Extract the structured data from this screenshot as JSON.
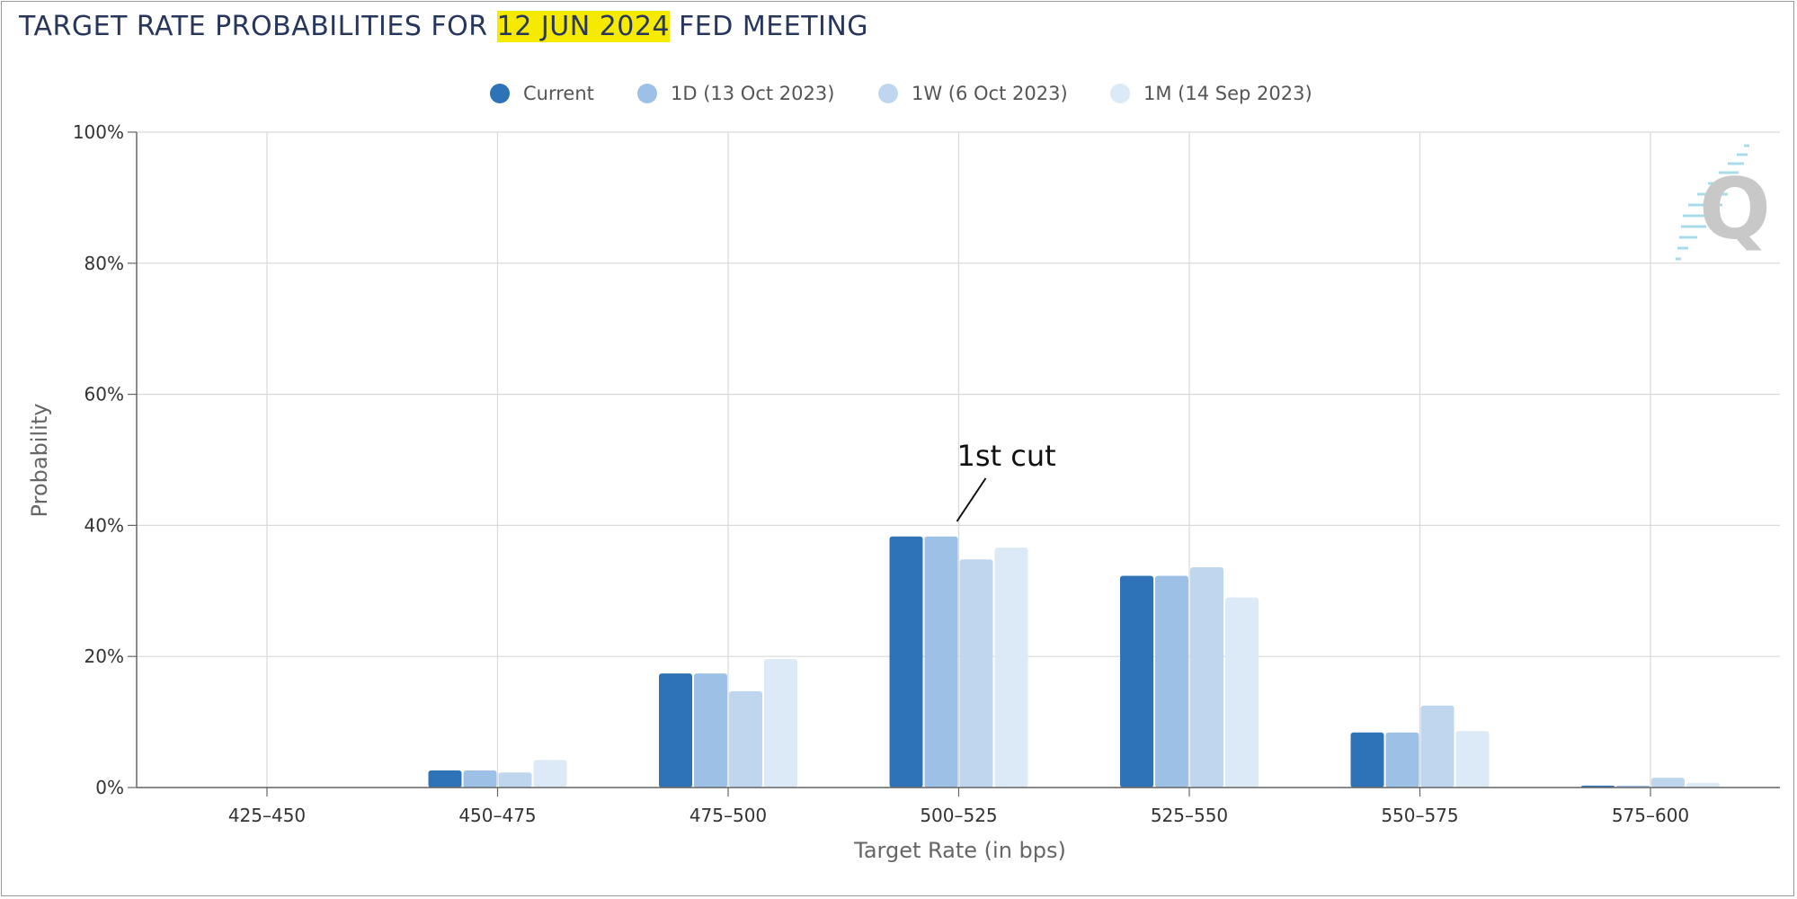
{
  "title": {
    "prefix": "TARGET RATE PROBABILITIES FOR ",
    "highlight": "12 JUN 2024",
    "suffix": " FED MEETING",
    "highlight_color": "#f5ea00"
  },
  "legend": [
    {
      "label": "Current",
      "color": "#2e73b8"
    },
    {
      "label": "1D (13 Oct 2023)",
      "color": "#9dc1e6"
    },
    {
      "label": "1W (6 Oct 2023)",
      "color": "#bfd7ee"
    },
    {
      "label": "1M (14 Sep 2023)",
      "color": "#dce9f6"
    }
  ],
  "chart_data": {
    "type": "bar",
    "categories": [
      "425-450",
      "450-475",
      "475-500",
      "500-525",
      "525-550",
      "550-575",
      "575-600"
    ],
    "series": [
      {
        "name": "Current",
        "color": "#2e73b8",
        "values": [
          0.0,
          2.6,
          17.4,
          38.3,
          32.3,
          8.4,
          0.3
        ]
      },
      {
        "name": "1D (13 Oct 2023)",
        "color": "#9dc1e6",
        "values": [
          0.0,
          2.6,
          17.4,
          38.3,
          32.3,
          8.4,
          0.3
        ]
      },
      {
        "name": "1W (6 Oct 2023)",
        "color": "#bfd7ee",
        "values": [
          0.0,
          2.3,
          14.7,
          34.8,
          33.6,
          12.5,
          1.5
        ]
      },
      {
        "name": "1M (14 Sep 2023)",
        "color": "#dce9f6",
        "values": [
          0.0,
          4.2,
          19.6,
          36.6,
          29.0,
          8.6,
          0.7
        ]
      }
    ],
    "ylim": [
      0,
      100
    ],
    "yticks": [
      "0%",
      "20%",
      "40%",
      "60%",
      "80%",
      "100%"
    ],
    "ytick_values": [
      0,
      20,
      40,
      60,
      80,
      100
    ],
    "xlabel": "Target Rate (in bps)",
    "ylabel": "Probability",
    "grid": true,
    "legend_position": "top-center",
    "annotation": {
      "text": "1st cut",
      "category": "500-525"
    },
    "logo": "q-logo-icon"
  }
}
